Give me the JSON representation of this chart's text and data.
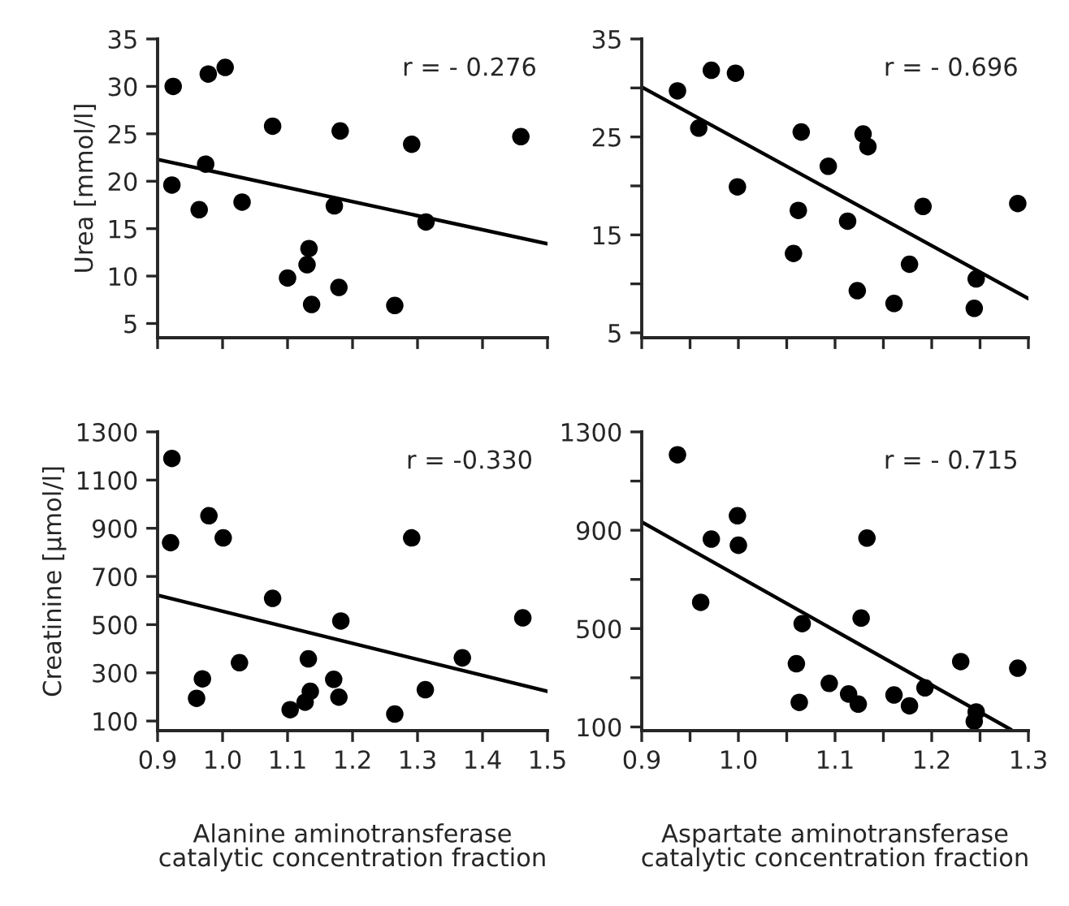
{
  "chart_data": [
    {
      "type": "scatter",
      "ylabel": "Urea [mmol/l]",
      "annotations": [
        "r = - 0.276"
      ],
      "xlim": [
        0.9,
        1.5
      ],
      "ylim": [
        3.5,
        35
      ],
      "xticks": [
        {
          "value": 0.9,
          "label": null
        },
        {
          "value": 1.0,
          "label": null
        },
        {
          "value": 1.1,
          "label": null
        },
        {
          "value": 1.2,
          "label": null
        },
        {
          "value": 1.3,
          "label": null
        },
        {
          "value": 1.4,
          "label": null
        },
        {
          "value": 1.5,
          "label": null
        }
      ],
      "yticks": [
        5,
        10,
        15,
        20,
        25,
        30,
        35
      ],
      "tick_labels": "y",
      "grid": false,
      "legend": false,
      "series": [
        {
          "marker": "circle",
          "color": "#000000",
          "x": [
            0.924,
            0.978,
            1.004,
            1.077,
            1.181,
            1.291,
            1.459,
            0.974,
            0.922,
            0.964,
            1.03,
            1.172,
            1.313,
            1.133,
            1.13,
            1.1,
            1.179,
            1.137,
            1.265
          ],
          "values": [
            30.0,
            31.3,
            32.0,
            25.8,
            25.3,
            23.9,
            24.7,
            21.8,
            19.6,
            17.0,
            17.8,
            17.4,
            15.7,
            12.9,
            11.2,
            9.8,
            8.8,
            7.0,
            6.9
          ]
        },
        {
          "type": "line",
          "color": "#000000",
          "x": [
            0.9,
            1.5
          ],
          "values": [
            22.3,
            13.4
          ]
        }
      ]
    },
    {
      "type": "scatter",
      "annotations": [
        "r = - 0.696"
      ],
      "xlim": [
        0.9,
        1.3
      ],
      "ylim": [
        4.5,
        35
      ],
      "xticks": [
        {
          "value": 0.9,
          "label": null
        },
        {
          "value": 0.95,
          "label": null
        },
        {
          "value": 1.0,
          "label": null
        },
        {
          "value": 1.05,
          "label": null
        },
        {
          "value": 1.1,
          "label": null
        },
        {
          "value": 1.15,
          "label": null
        },
        {
          "value": 1.2,
          "label": null
        },
        {
          "value": 1.25,
          "label": null
        },
        {
          "value": 1.3,
          "label": null
        }
      ],
      "yticks": [
        5,
        {
          "value": 10,
          "label": null
        },
        15,
        {
          "value": 20,
          "label": null
        },
        25,
        {
          "value": 30,
          "label": null
        },
        35
      ],
      "tick_labels": "y",
      "grid": false,
      "legend": false,
      "series": [
        {
          "marker": "circle",
          "color": "#000000",
          "x": [
            0.937,
            0.959,
            0.972,
            0.997,
            0.999,
            1.065,
            1.062,
            1.057,
            1.093,
            1.129,
            1.134,
            1.113,
            1.123,
            1.161,
            1.177,
            1.191,
            1.246,
            1.244,
            1.289
          ],
          "values": [
            29.7,
            25.9,
            31.8,
            31.5,
            19.9,
            25.5,
            17.5,
            13.1,
            22.0,
            25.3,
            24.0,
            16.4,
            9.3,
            8.0,
            12.0,
            17.9,
            10.5,
            7.5,
            18.2
          ]
        },
        {
          "type": "line",
          "color": "#000000",
          "x": [
            0.9,
            1.3
          ],
          "values": [
            30.1,
            8.5
          ]
        }
      ]
    },
    {
      "type": "scatter",
      "ylabel": "Creatinine [µmol/l]",
      "xlabel": "Alanine aminotransferase\ncatalytic concentration fraction",
      "annotations": [
        "r = -0.330"
      ],
      "xlim": [
        0.9,
        1.5
      ],
      "ylim": [
        60,
        1300
      ],
      "xticks": [
        0.9,
        {
          "value": 1.0,
          "label": "1.0"
        },
        1.1,
        1.2,
        1.3,
        1.4,
        {
          "value": 1.5,
          "label": "1.5"
        }
      ],
      "yticks": [
        100,
        300,
        500,
        700,
        900,
        1100,
        1300
      ],
      "grid": false,
      "legend": false,
      "series": [
        {
          "marker": "circle",
          "color": "#000000",
          "x": [
            0.922,
            0.92,
            0.979,
            1.001,
            0.96,
            0.969,
            1.026,
            1.077,
            1.104,
            1.127,
            1.135,
            1.132,
            1.171,
            1.179,
            1.182,
            1.265,
            1.291,
            1.312,
            1.369,
            1.462
          ],
          "values": [
            1190,
            840,
            952,
            860,
            194,
            275,
            342,
            609,
            147,
            178,
            223,
            358,
            273,
            199,
            515,
            129,
            860,
            230,
            362,
            528
          ]
        },
        {
          "type": "line",
          "color": "#000000",
          "x": [
            0.9,
            1.5
          ],
          "values": [
            622,
            223
          ]
        }
      ]
    },
    {
      "type": "scatter",
      "xlabel": "Aspartate aminotransferase\ncatalytic concentration fraction",
      "annotations": [
        "r = - 0.715"
      ],
      "xlim": [
        0.9,
        1.3
      ],
      "ylim": [
        85,
        1300
      ],
      "xticks": [
        0.9,
        {
          "value": 0.95,
          "label": null
        },
        {
          "value": 1.0,
          "label": "1.0"
        },
        {
          "value": 1.05,
          "label": null
        },
        1.1,
        {
          "value": 1.15,
          "label": null
        },
        1.2,
        {
          "value": 1.25,
          "label": null
        },
        1.3
      ],
      "yticks": [
        100,
        {
          "value": 300,
          "label": null
        },
        500,
        {
          "value": 700,
          "label": null
        },
        900,
        {
          "value": 1100,
          "label": null
        },
        1300
      ],
      "grid": false,
      "legend": false,
      "series": [
        {
          "marker": "circle",
          "color": "#000000",
          "x": [
            0.937,
            0.972,
            0.961,
            0.999,
            1.0,
            1.133,
            1.127,
            1.066,
            1.06,
            1.063,
            1.094,
            1.114,
            1.124,
            1.161,
            1.177,
            1.193,
            1.23,
            1.246,
            1.244,
            1.289
          ],
          "values": [
            1207,
            864,
            607,
            959,
            839,
            868,
            543,
            520,
            357,
            200,
            277,
            234,
            193,
            230,
            186,
            259,
            366,
            161,
            123,
            339
          ]
        },
        {
          "type": "line",
          "color": "#000000",
          "x": [
            0.9,
            1.282
          ],
          "values": [
            934,
            89
          ]
        }
      ]
    }
  ]
}
